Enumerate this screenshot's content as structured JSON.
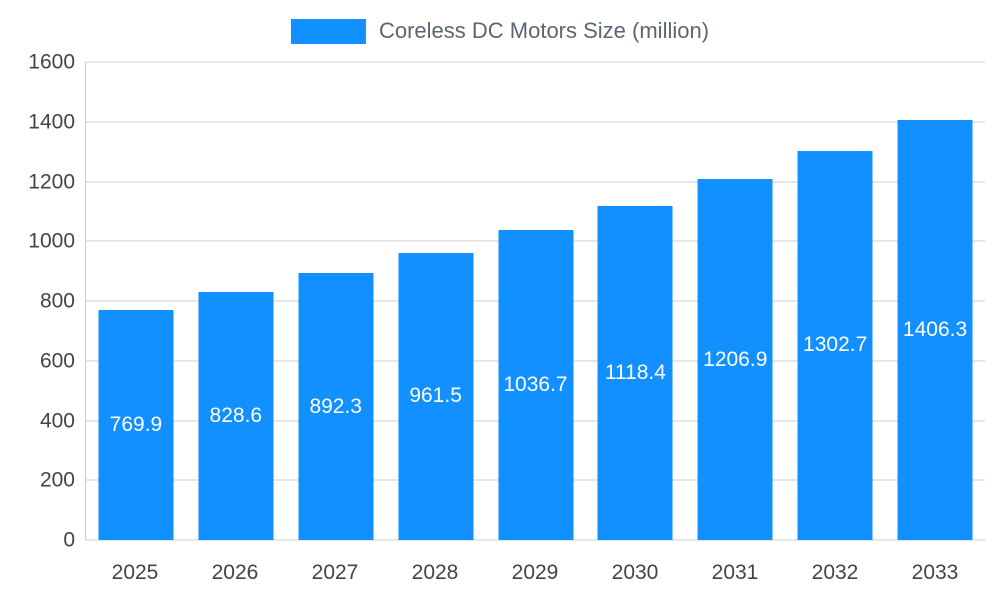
{
  "chart_data": {
    "type": "bar",
    "title": "Coreless DC Motors Size (million)",
    "categories": [
      "2025",
      "2026",
      "2027",
      "2028",
      "2029",
      "2030",
      "2031",
      "2032",
      "2033"
    ],
    "series": [
      {
        "name": "Coreless DC Motors Size (million)",
        "values": [
          769.9,
          828.6,
          892.3,
          961.5,
          1036.7,
          1118.4,
          1206.9,
          1302.7,
          1406.3
        ]
      }
    ],
    "value_labels": [
      "769.9",
      "828.6",
      "892.3",
      "961.5",
      "1036.7",
      "1118.4",
      "1206.9",
      "1302.7",
      "1406.3"
    ],
    "xlabel": "",
    "ylabel": "",
    "ylim": [
      0,
      1600
    ],
    "y_ticks": [
      0,
      200,
      400,
      600,
      800,
      1000,
      1200,
      1400,
      1600
    ],
    "grid": true,
    "legend_position": "top-center",
    "value_label_position": "inside-center",
    "colors": {
      "bar": "#1290ff",
      "gridline": "#cccccc",
      "axis_line": "#cccccc",
      "tick_text": "#444444",
      "value_label": "#ffffff",
      "legend_text": "#5a6672",
      "background": "#ffffff"
    }
  }
}
